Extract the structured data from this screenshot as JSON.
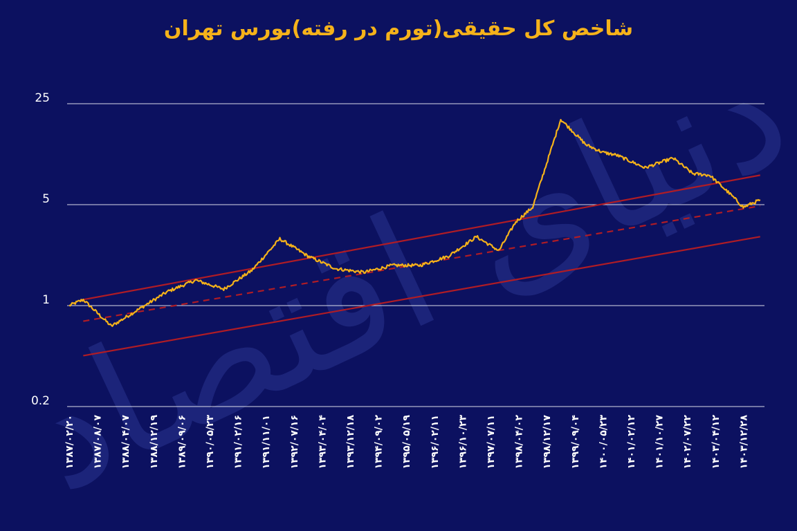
{
  "colors": {
    "background": "#0c1160",
    "title": "#f5b21a",
    "index_line": "#f5b21a",
    "channel": "#b01c25",
    "grid": "#ffffff",
    "text": "#ffffff"
  },
  "watermark": "دنیای اقتصاد",
  "chart_data": {
    "type": "line",
    "title": "شاخص کل حقیقی(تورم در رفته)بورس تهران",
    "xlabel": "",
    "ylabel": "",
    "scale": "log",
    "grid": "horizontal",
    "yticks": [
      25,
      5,
      1,
      0.2
    ],
    "ytick_labels": [
      "25",
      "5",
      "1",
      "0.2"
    ],
    "ylim": [
      0.2,
      25
    ],
    "x_tick_labels": [
      "۱۳۸۷/۰۲/۲۰",
      "۱۳۸۷/۰۸/۰۷",
      "۱۳۸۸/۰۴/۰۷",
      "۱۳۸۸/۱۲/۱۹",
      "۱۳۸۹/۰۹/۰۶",
      "۱۳۹۰/۰۵/۲۳",
      "۱۳۹۱/۰۲/۱۶",
      "۱۳۹۱/۱۱/۰۱",
      "۱۳۹۲/۰۷/۱۶",
      "۱۳۹۳/۰۴/۰۴",
      "۱۳۹۳/۱۲/۱۸",
      "۱۳۹۴/۰۹/۰۲",
      "۱۳۹۵/۰۵/۱۹",
      "۱۳۹۶/۰۲/۱۱",
      "۱۳۹۶/۱۰/۲۳",
      "۱۳۹۷/۰۷/۱۱",
      "۱۳۹۸/۰۴/۰۲",
      "۱۳۹۸/۱۲/۱۷",
      "۱۳۹۹/۰۹/۰۴",
      "۱۴۰۰/۰۵/۲۳",
      "۱۴۰۱/۰۲/۱۲",
      "۱۴۰۱/۱۰/۲۷",
      "۱۴۰۲/۰۷/۲۲",
      "۱۴۰۳/۰۴/۱۲",
      "۱۴۰۳/۱۲/۲۸"
    ],
    "series": [
      {
        "type": "line",
        "x_index": [
          0,
          0.5,
          1.5,
          2.5,
          3.5,
          4.5,
          5.5,
          6.5,
          7.5,
          8.5,
          9.5,
          10.5,
          11.5,
          12.5,
          13.5,
          14.5,
          15.3,
          15.9,
          16.5,
          17.5,
          18.4,
          19,
          19.5,
          20.5,
          21.5,
          22.2,
          22.8,
          23.5,
          24,
          24.6
        ],
        "values": [
          1.0,
          1.1,
          0.72,
          0.95,
          1.25,
          1.5,
          1.3,
          1.75,
          2.9,
          2.2,
          1.8,
          1.7,
          1.9,
          1.9,
          2.2,
          3.0,
          2.4,
          3.8,
          4.8,
          19.5,
          13,
          11.5,
          11.0,
          9.0,
          10.5,
          8.2,
          8.0,
          6.0,
          4.8,
          5.4
        ]
      },
      {
        "type": "trend",
        "style": "dashed",
        "x_index": [
          0.5,
          24.6
        ],
        "values": [
          0.78,
          4.9
        ]
      },
      {
        "type": "trend",
        "style": "solid",
        "x_index": [
          0.5,
          24.6
        ],
        "values": [
          1.1,
          8.0
        ]
      },
      {
        "type": "trend",
        "style": "solid",
        "x_index": [
          0.5,
          24.6
        ],
        "values": [
          0.45,
          3.0
        ]
      }
    ]
  }
}
